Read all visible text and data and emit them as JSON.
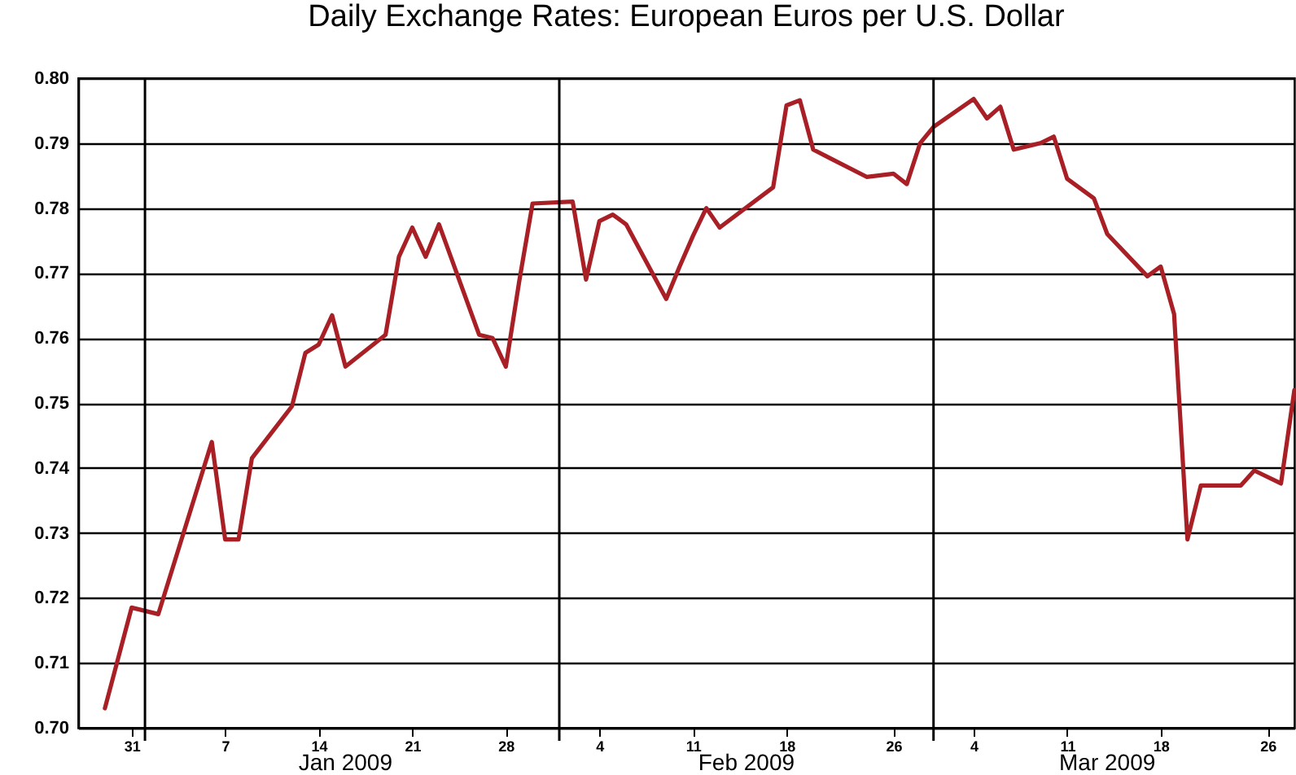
{
  "chart_data": {
    "type": "line",
    "title": "Daily Exchange Rates: European Euros per U.S. Dollar",
    "x": [
      "2008-12-29",
      "2008-12-31",
      "2009-01-02",
      "2009-01-06",
      "2009-01-07",
      "2009-01-08",
      "2009-01-09",
      "2009-01-12",
      "2009-01-13",
      "2009-01-14",
      "2009-01-15",
      "2009-01-16",
      "2009-01-19",
      "2009-01-20",
      "2009-01-21",
      "2009-01-22",
      "2009-01-23",
      "2009-01-26",
      "2009-01-27",
      "2009-01-28",
      "2009-01-29",
      "2009-01-30",
      "2009-02-02",
      "2009-02-03",
      "2009-02-04",
      "2009-02-05",
      "2009-02-06",
      "2009-02-09",
      "2009-02-10",
      "2009-02-11",
      "2009-02-12",
      "2009-02-13",
      "2009-02-17",
      "2009-02-18",
      "2009-02-19",
      "2009-02-20",
      "2009-02-24",
      "2009-02-26",
      "2009-02-27",
      "2009-02-28",
      "2009-03-01",
      "2009-03-04",
      "2009-03-05",
      "2009-03-06",
      "2009-03-07",
      "2009-03-09",
      "2009-03-10",
      "2009-03-11",
      "2009-03-13",
      "2009-03-14",
      "2009-03-17",
      "2009-03-18",
      "2009-03-19",
      "2009-03-20",
      "2009-03-21",
      "2009-03-24",
      "2009-03-25",
      "2009-03-27",
      "2009-03-28"
    ],
    "series": [
      {
        "color": "#a82026",
        "values": [
          0.703,
          0.7185,
          0.7175,
          0.744,
          0.729,
          0.729,
          0.7415,
          0.7495,
          0.7577,
          0.759,
          0.7635,
          0.7556,
          0.7605,
          0.7725,
          0.777,
          0.7725,
          0.7775,
          0.7605,
          0.76,
          0.7556,
          0.7687,
          0.7807,
          0.781,
          0.769,
          0.778,
          0.779,
          0.7775,
          0.766,
          0.771,
          0.7757,
          0.78,
          0.777,
          0.7832,
          0.7958,
          0.7966,
          0.789,
          0.7848,
          0.7853,
          0.7837,
          0.79,
          0.7925,
          0.7968,
          0.7938,
          0.7956,
          0.789,
          0.79,
          0.791,
          0.7845,
          0.7815,
          0.776,
          0.7695,
          0.771,
          0.7637,
          0.729,
          0.7373,
          0.7373,
          0.7396,
          0.7376,
          0.752
        ]
      }
    ],
    "xlim": [
      "2008-12-27",
      "2009-03-28"
    ],
    "xticks": [
      {
        "value": "2008-12-31",
        "label": "31"
      },
      {
        "value": "2009-01-07",
        "label": "7"
      },
      {
        "value": "2009-01-14",
        "label": "14"
      },
      {
        "value": "2009-01-21",
        "label": "21"
      },
      {
        "value": "2009-01-28",
        "label": "28"
      },
      {
        "value": "2009-02-04",
        "label": "4"
      },
      {
        "value": "2009-02-11",
        "label": "11"
      },
      {
        "value": "2009-02-18",
        "label": "18"
      },
      {
        "value": "2009-02-26",
        "label": "26"
      },
      {
        "value": "2009-03-04",
        "label": "4"
      },
      {
        "value": "2009-03-11",
        "label": "11"
      },
      {
        "value": "2009-03-18",
        "label": "18"
      },
      {
        "value": "2009-03-26",
        "label": "26"
      }
    ],
    "ylim": [
      0.7,
      0.8
    ],
    "yticks": [
      {
        "value": 0.7,
        "label": "0.70"
      },
      {
        "value": 0.71,
        "label": "0.71"
      },
      {
        "value": 0.72,
        "label": "0.72"
      },
      {
        "value": 0.73,
        "label": "0.73"
      },
      {
        "value": 0.74,
        "label": "0.74"
      },
      {
        "value": 0.75,
        "label": "0.75"
      },
      {
        "value": 0.76,
        "label": "0.76"
      },
      {
        "value": 0.77,
        "label": "0.77"
      },
      {
        "value": 0.78,
        "label": "0.78"
      },
      {
        "value": 0.79,
        "label": "0.79"
      },
      {
        "value": 0.8,
        "label": "0.80"
      }
    ],
    "grid": "y",
    "ref_lines": [
      {
        "axis": "x",
        "value": "2009-01-01",
        "color": "#000000"
      },
      {
        "axis": "x",
        "value": "2009-02-01",
        "color": "#000000"
      },
      {
        "axis": "x",
        "value": "2009-03-01",
        "color": "#000000"
      }
    ],
    "annotations": [
      "Jan 2009",
      "Feb 2009",
      "Mar 2009"
    ]
  }
}
